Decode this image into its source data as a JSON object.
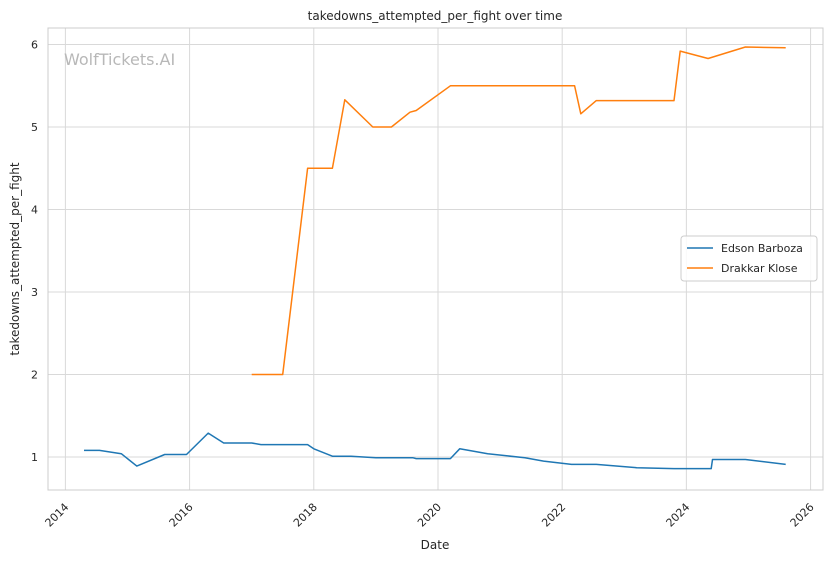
{
  "chart_data": {
    "type": "line",
    "title": "takedowns_attempted_per_fight over time",
    "xlabel": "Date",
    "ylabel": "takedowns_attempted_per_fight",
    "watermark": "WolfTickets.AI",
    "x_ticks": [
      "2014",
      "2016",
      "2018",
      "2020",
      "2022",
      "2024",
      "2026"
    ],
    "y_ticks": [
      "1",
      "2",
      "3",
      "4",
      "5",
      "6"
    ],
    "xlim": [
      2013.72,
      2026.2
    ],
    "ylim": [
      0.6,
      6.2
    ],
    "grid": true,
    "legend_placement": "center-right",
    "series": [
      {
        "name": "Edson Barboza",
        "color": "#1f77b4",
        "points": [
          [
            2014.3,
            1.08
          ],
          [
            2014.55,
            1.08
          ],
          [
            2014.9,
            1.04
          ],
          [
            2015.15,
            0.89
          ],
          [
            2015.6,
            1.03
          ],
          [
            2015.95,
            1.03
          ],
          [
            2016.3,
            1.29
          ],
          [
            2016.55,
            1.17
          ],
          [
            2017.0,
            1.17
          ],
          [
            2017.15,
            1.15
          ],
          [
            2017.9,
            1.15
          ],
          [
            2018.0,
            1.1
          ],
          [
            2018.3,
            1.01
          ],
          [
            2018.6,
            1.01
          ],
          [
            2019.0,
            0.99
          ],
          [
            2019.45,
            0.99
          ],
          [
            2019.6,
            0.99
          ],
          [
            2019.65,
            0.98
          ],
          [
            2020.2,
            0.98
          ],
          [
            2020.35,
            1.1
          ],
          [
            2020.8,
            1.04
          ],
          [
            2021.4,
            0.99
          ],
          [
            2021.7,
            0.95
          ],
          [
            2022.15,
            0.91
          ],
          [
            2022.55,
            0.91
          ],
          [
            2023.2,
            0.87
          ],
          [
            2023.8,
            0.86
          ],
          [
            2024.4,
            0.86
          ],
          [
            2024.42,
            0.97
          ],
          [
            2024.95,
            0.97
          ],
          [
            2025.6,
            0.91
          ]
        ]
      },
      {
        "name": "Drakkar Klose",
        "color": "#ff7f0e",
        "points": [
          [
            2017.0,
            2.0
          ],
          [
            2017.5,
            2.0
          ],
          [
            2017.9,
            4.5
          ],
          [
            2018.3,
            4.5
          ],
          [
            2018.5,
            5.33
          ],
          [
            2018.95,
            5.0
          ],
          [
            2019.25,
            5.0
          ],
          [
            2019.55,
            5.18
          ],
          [
            2019.65,
            5.2
          ],
          [
            2020.2,
            5.5
          ],
          [
            2022.2,
            5.5
          ],
          [
            2022.3,
            5.16
          ],
          [
            2022.55,
            5.32
          ],
          [
            2023.8,
            5.32
          ],
          [
            2023.9,
            5.92
          ],
          [
            2024.35,
            5.83
          ],
          [
            2024.95,
            5.97
          ],
          [
            2025.6,
            5.96
          ]
        ]
      }
    ]
  }
}
